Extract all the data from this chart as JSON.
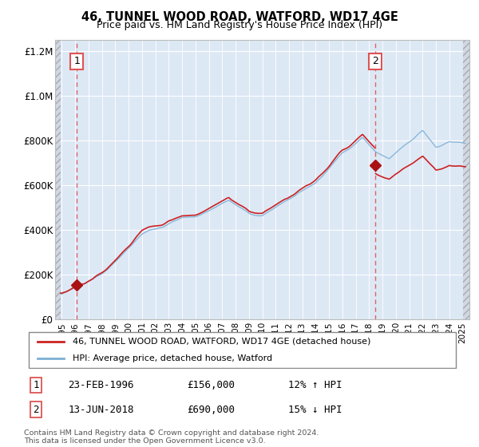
{
  "title": "46, TUNNEL WOOD ROAD, WATFORD, WD17 4GE",
  "subtitle": "Price paid vs. HM Land Registry's House Price Index (HPI)",
  "sale1": {
    "date_x": 1996.12,
    "price": 156000,
    "label": "1",
    "date_str": "23-FEB-1996",
    "pct": "12% ↑ HPI"
  },
  "sale2": {
    "date_x": 2018.45,
    "price": 690000,
    "label": "2",
    "date_str": "13-JUN-2018",
    "pct": "15% ↓ HPI"
  },
  "legend_line1": "46, TUNNEL WOOD ROAD, WATFORD, WD17 4GE (detached house)",
  "legend_line2": "HPI: Average price, detached house, Watford",
  "footnote": "Contains HM Land Registry data © Crown copyright and database right 2024.\nThis data is licensed under the Open Government Licence v3.0.",
  "hpi_color": "#7bafd4",
  "price_color": "#cc2222",
  "marker_color": "#aa1111",
  "dashed_color": "#dd5555",
  "bg_plot": "#dde8f5",
  "ylim": [
    0,
    1250000
  ],
  "xlim_start": 1994.5,
  "xlim_end": 2025.5,
  "hatch_left_end": 1994.92,
  "hatch_right_start": 2025.0
}
